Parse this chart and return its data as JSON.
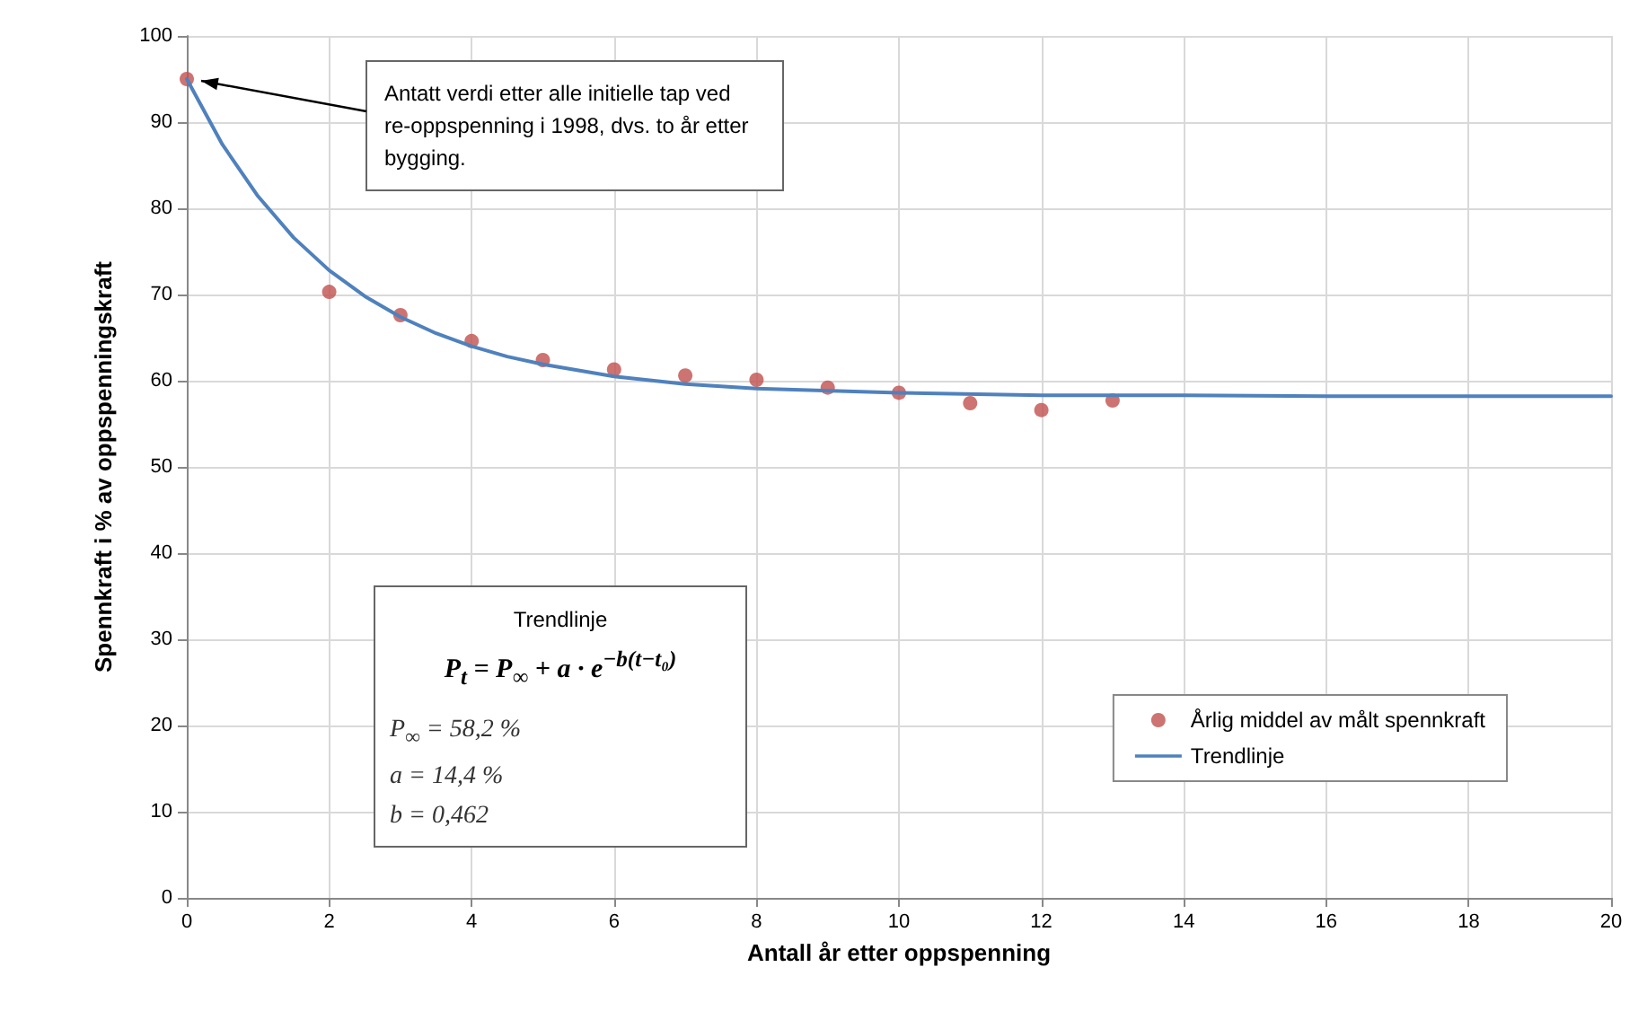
{
  "chart_data": {
    "type": "scatter",
    "xlabel": "Antall år etter oppspenning",
    "ylabel": "Spennkraft i % av oppspenningskraft",
    "xlim": [
      0,
      20
    ],
    "xticks": [
      0,
      2,
      4,
      6,
      8,
      10,
      12,
      14,
      16,
      18,
      20
    ],
    "ylim": [
      0,
      100
    ],
    "yticks": [
      0,
      10,
      20,
      30,
      40,
      50,
      60,
      70,
      80,
      90,
      100
    ],
    "grid": true,
    "legend": "bottom right",
    "series": [
      {
        "name": "Årlig middel av målt spennkraft",
        "marker": "circle",
        "color": "#c0504d",
        "x": [
          0,
          2,
          3,
          4,
          5,
          6,
          7,
          8,
          9,
          10,
          11,
          12,
          13
        ],
        "values": [
          95,
          70.3,
          67.6,
          64.6,
          62.4,
          61.3,
          60.6,
          60.1,
          59.2,
          58.6,
          57.4,
          56.6,
          57.7
        ]
      },
      {
        "name": "Trendlinje",
        "type": "line",
        "marker": "none",
        "line_style": "solid",
        "color": "#4f81bd",
        "x": [
          0,
          0.5,
          1,
          1.5,
          2,
          2.5,
          3,
          3.5,
          4,
          4.5,
          5,
          6,
          7,
          8,
          10,
          12,
          14,
          16,
          20
        ],
        "values": [
          95,
          87.4,
          81.4,
          76.6,
          72.8,
          69.8,
          67.4,
          65.5,
          64,
          62.8,
          61.9,
          60.5,
          59.6,
          59.1,
          58.6,
          58.3,
          58.3,
          58.2,
          58.2
        ]
      }
    ],
    "annotations": [
      {
        "text": "Antatt verdi etter alle initielle tap ved re-oppspenning i 1998, dvs. to år etter bygging.",
        "x": 0,
        "y": 95
      },
      "Trendlinje",
      "P$_{t}$ = P$_{∞}$ + a · e$^{−b(t−t₀)}$",
      "P$_{∞}$ = 58,2 %",
      "a = 14,4 %",
      "b = 0,462"
    ]
  }
}
